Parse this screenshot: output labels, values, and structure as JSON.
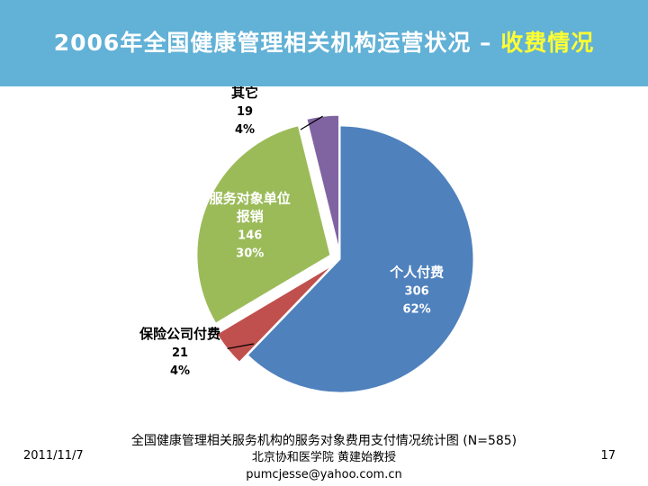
{
  "header": {
    "title_main": "2006年全国健康管理相关机构运营状况 – ",
    "title_highlight": "收费情况"
  },
  "chart_data": {
    "type": "pie",
    "slices": [
      {
        "label": "个人付费",
        "value": 306,
        "percent": "62%",
        "color": "#4f81bd",
        "label_color": "#ffffff",
        "exploded": false
      },
      {
        "label": "保险公司付费",
        "value": 21,
        "percent": "4%",
        "color": "#c0504d",
        "label_color": "#000000",
        "exploded": true
      },
      {
        "label": "服务对象单位报销",
        "value": 146,
        "percent": "30%",
        "color": "#9bbb59",
        "label_color": "#ffffff",
        "exploded": true
      },
      {
        "label": "其它",
        "value": 19,
        "percent": "4%",
        "color": "#8064a2",
        "label_color": "#000000",
        "exploded": true
      }
    ],
    "caption": "全国健康管理相关服务机构的服务对象费用支付情况统计图 (N=585)"
  },
  "footer": {
    "date": "2011/11/7",
    "institution": "北京协和医学院 黄建始教授",
    "email": "pumcjesse@yahoo.com.cn",
    "page": "17"
  }
}
